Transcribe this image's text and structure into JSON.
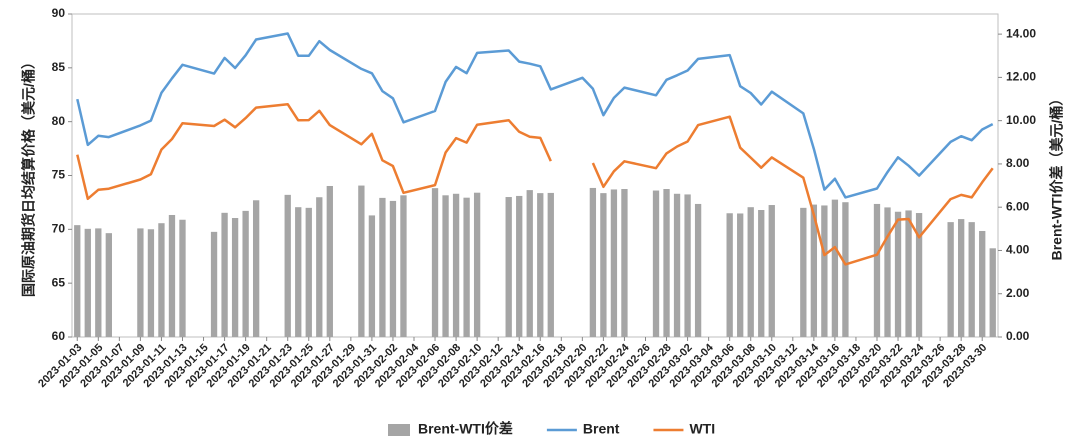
{
  "chart_data": {
    "type": "bar_line_dual_axis",
    "y_label": "国际原油期货日均结算价格（美元/桶）",
    "y2_label": "Brent-WTI价差（美元/桶）",
    "xlim": [
      "2023-01-03",
      "2023-03-31"
    ],
    "xticks": [
      "2023-01-03",
      "2023-01-05",
      "2023-01-07",
      "2023-01-09",
      "2023-01-11",
      "2023-01-13",
      "2023-01-15",
      "2023-01-17",
      "2023-01-19",
      "2023-01-21",
      "2023-01-23",
      "2023-01-25",
      "2023-01-27",
      "2023-01-29",
      "2023-01-31",
      "2023-02-02",
      "2023-02-04",
      "2023-02-06",
      "2023-02-08",
      "2023-02-10",
      "2023-02-12",
      "2023-02-14",
      "2023-02-16",
      "2023-02-18",
      "2023-02-20",
      "2023-02-22",
      "2023-02-24",
      "2023-02-26",
      "2023-02-28",
      "2023-03-02",
      "2023-03-04",
      "2023-03-06",
      "2023-03-08",
      "2023-03-10",
      "2023-03-12",
      "2023-03-14",
      "2023-03-16",
      "2023-03-18",
      "2023-03-20",
      "2023-03-22",
      "2023-03-24",
      "2023-03-26",
      "2023-03-28",
      "2023-03-30"
    ],
    "x": [
      "2023-01-03",
      "2023-01-04",
      "2023-01-05",
      "2023-01-06",
      "2023-01-09",
      "2023-01-10",
      "2023-01-11",
      "2023-01-12",
      "2023-01-13",
      "2023-01-16",
      "2023-01-17",
      "2023-01-18",
      "2023-01-19",
      "2023-01-20",
      "2023-01-23",
      "2023-01-24",
      "2023-01-25",
      "2023-01-26",
      "2023-01-27",
      "2023-01-30",
      "2023-01-31",
      "2023-02-01",
      "2023-02-02",
      "2023-02-03",
      "2023-02-06",
      "2023-02-07",
      "2023-02-08",
      "2023-02-09",
      "2023-02-10",
      "2023-02-13",
      "2023-02-14",
      "2023-02-15",
      "2023-02-16",
      "2023-02-17",
      "2023-02-20",
      "2023-02-21",
      "2023-02-22",
      "2023-02-23",
      "2023-02-24",
      "2023-02-27",
      "2023-02-28",
      "2023-03-01",
      "2023-03-02",
      "2023-03-03",
      "2023-03-06",
      "2023-03-07",
      "2023-03-08",
      "2023-03-09",
      "2023-03-10",
      "2023-03-13",
      "2023-03-14",
      "2023-03-15",
      "2023-03-16",
      "2023-03-17",
      "2023-03-20",
      "2023-03-21",
      "2023-03-22",
      "2023-03-23",
      "2023-03-24",
      "2023-03-27",
      "2023-03-28",
      "2023-03-29",
      "2023-03-30",
      "2023-03-31"
    ],
    "ylim": [
      60,
      90
    ],
    "yticks": [
      60,
      65,
      70,
      75,
      80,
      85,
      90
    ],
    "y2lim": [
      0,
      14.93
    ],
    "y2ticks": [
      {
        "value": 0,
        "label": "0.00"
      },
      {
        "value": 2,
        "label": "2.00"
      },
      {
        "value": 4,
        "label": "4.00"
      },
      {
        "value": 6,
        "label": "6.00"
      },
      {
        "value": 8,
        "label": "8.00"
      },
      {
        "value": 10,
        "label": "10.00"
      },
      {
        "value": 12,
        "label": "12.00"
      },
      {
        "value": 14,
        "label": "14.00"
      }
    ],
    "legend": "bottom",
    "series": [
      {
        "name": "Brent-WTI价差",
        "type": "bar",
        "axis": "y2",
        "color": "#a5a5a5",
        "values": [
          5.17,
          5.0,
          5.02,
          4.8,
          5.02,
          4.98,
          5.26,
          5.64,
          5.42,
          4.86,
          5.74,
          5.5,
          5.83,
          6.32,
          6.57,
          6.0,
          5.97,
          6.46,
          6.98,
          7.0,
          5.62,
          6.43,
          6.29,
          6.55,
          6.88,
          6.55,
          6.62,
          6.44,
          6.67,
          6.47,
          6.52,
          6.79,
          6.65,
          6.66,
          null,
          6.89,
          6.65,
          6.82,
          6.84,
          6.77,
          6.84,
          6.62,
          6.59,
          6.15,
          5.72,
          5.71,
          6.0,
          5.87,
          6.1,
          5.97,
          6.12,
          6.08,
          6.35,
          6.23,
          6.15,
          5.99,
          5.79,
          5.85,
          5.73,
          5.31,
          5.45,
          5.31,
          4.9,
          4.1
        ]
      },
      {
        "name": "Brent",
        "type": "line",
        "color": "#5b9bd5",
        "values": [
          82.1,
          77.84,
          78.69,
          78.57,
          79.65,
          80.1,
          82.67,
          84.03,
          85.28,
          84.46,
          85.92,
          84.98,
          86.16,
          87.63,
          88.19,
          86.13,
          86.12,
          87.47,
          86.66,
          84.9,
          84.49,
          82.84,
          82.17,
          79.94,
          80.99,
          83.69,
          85.09,
          84.5,
          86.39,
          86.61,
          85.58,
          85.38,
          85.14,
          83.0,
          84.07,
          83.05,
          80.6,
          82.21,
          83.16,
          82.45,
          83.89,
          84.31,
          84.75,
          85.83,
          86.18,
          83.29,
          82.66,
          81.59,
          82.78,
          80.77,
          77.45,
          73.69,
          74.7,
          72.97,
          73.79,
          75.32,
          76.69,
          75.91,
          74.99,
          78.12,
          78.65,
          78.28,
          79.27,
          79.77
        ]
      },
      {
        "name": "WTI",
        "type": "line",
        "color": "#ed7d31",
        "values": [
          76.93,
          72.84,
          73.67,
          73.77,
          74.63,
          75.12,
          77.41,
          78.39,
          79.86,
          79.6,
          80.18,
          79.48,
          80.33,
          81.31,
          81.62,
          80.13,
          80.15,
          81.01,
          79.68,
          77.9,
          78.87,
          76.41,
          75.88,
          73.39,
          74.11,
          77.14,
          78.47,
          78.06,
          79.72,
          80.14,
          79.06,
          78.59,
          78.49,
          76.34,
          null,
          76.16,
          73.95,
          75.39,
          76.32,
          75.68,
          77.05,
          77.69,
          78.16,
          79.68,
          80.46,
          77.58,
          76.66,
          75.72,
          76.68,
          74.8,
          71.33,
          67.61,
          68.35,
          66.74,
          67.64,
          69.33,
          70.9,
          70.96,
          69.26,
          72.81,
          73.2,
          72.97,
          74.37,
          75.67
        ]
      }
    ]
  }
}
